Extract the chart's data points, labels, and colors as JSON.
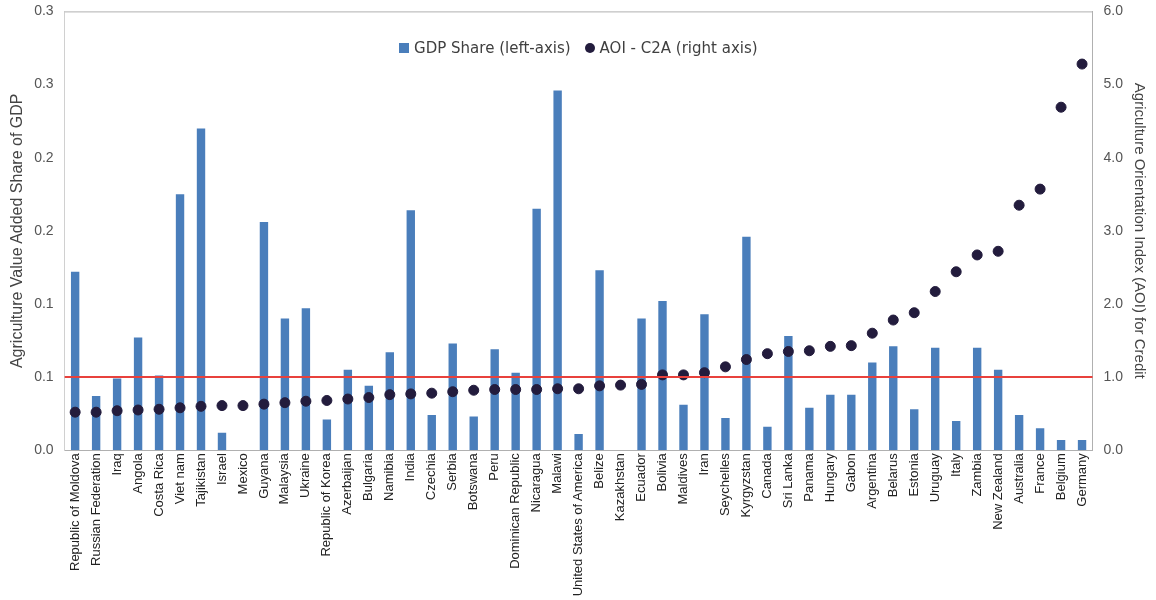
{
  "chart_data": {
    "type": "bar",
    "ylabel": "Agriculture Value Added Share of GDP",
    "y2label": "Agriculture Orientation Index (AOI) for Credit",
    "categories": [
      "Republic of Moldova",
      "Russian Federation",
      "Iraq",
      "Angola",
      "Costa Rica",
      "Viet nam",
      "Tajikistan",
      "Israel",
      "Mexico",
      "Guyana",
      "Malaysia",
      "Ukraine",
      "Republic of Korea",
      "Azerbaijan",
      "Bulgaria",
      "Namibia",
      "India",
      "Czechia",
      "Serbia",
      "Botswana",
      "Peru",
      "Dominican Republic",
      "Nicaragua",
      "Malawi",
      "United States of America",
      "Belize",
      "Kazakhstan",
      "Ecuador",
      "Bolivia",
      "Maldives",
      "Iran",
      "Seychelles",
      "Kyrgyzstan",
      "Canada",
      "Sri Lanka",
      "Panama",
      "Hungary",
      "Gabon",
      "Argentina",
      "Belarus",
      "Estonia",
      "Uruguay",
      "Italy",
      "Zambia",
      "New Zealand",
      "Australia",
      "France",
      "Belgium",
      "Germany"
    ],
    "series": [
      {
        "name": "GDP Share (left-axis)",
        "color": "#4a7ebb",
        "values": [
          0.122,
          0.037,
          0.049,
          0.077,
          0.051,
          0.175,
          0.22,
          0.012,
          null,
          0.156,
          0.09,
          0.097,
          0.021,
          0.055,
          0.044,
          0.067,
          0.164,
          0.024,
          0.073,
          0.023,
          0.069,
          0.053,
          0.165,
          0.246,
          0.011,
          0.123,
          null,
          0.09,
          0.102,
          0.031,
          0.093,
          0.022,
          0.146,
          0.016,
          0.078,
          0.029,
          0.038,
          0.038,
          0.06,
          0.071,
          0.028,
          0.07,
          0.02,
          0.07,
          0.055,
          0.024,
          0.015,
          0.007,
          0.007
        ]
      },
      {
        "name": "AOI - C2A (right axis)",
        "type": "scatter",
        "axis": "y2",
        "color": "#231c3d",
        "values": [
          0.52,
          0.52,
          0.54,
          0.55,
          0.56,
          0.58,
          0.6,
          0.61,
          0.61,
          0.63,
          0.65,
          0.67,
          0.68,
          0.7,
          0.72,
          0.76,
          0.77,
          0.78,
          0.8,
          0.82,
          0.83,
          0.83,
          0.83,
          0.84,
          0.84,
          0.88,
          0.89,
          0.9,
          1.03,
          1.03,
          1.06,
          1.14,
          1.24,
          1.32,
          1.35,
          1.36,
          1.42,
          1.43,
          1.6,
          1.78,
          1.88,
          2.17,
          2.44,
          2.67,
          2.72,
          3.35,
          3.57,
          4.69,
          5.28
        ]
      }
    ],
    "ylim": [
      0,
      0.3
    ],
    "yticks": [
      {
        "value": 0,
        "label": "0.0"
      },
      {
        "value": 0.05,
        "label": "0.1"
      },
      {
        "value": 0.1,
        "label": "0.1"
      },
      {
        "value": 0.15,
        "label": "0.2"
      },
      {
        "value": 0.2,
        "label": "0.2"
      },
      {
        "value": 0.25,
        "label": "0.3"
      },
      {
        "value": 0.3,
        "label": "0.3"
      }
    ],
    "y2lim": [
      0,
      6
    ],
    "y2ticks": [
      {
        "value": 0,
        "label": "0.0"
      },
      {
        "value": 1,
        "label": "1.0"
      },
      {
        "value": 2,
        "label": "2.0"
      },
      {
        "value": 3,
        "label": "3.0"
      },
      {
        "value": 4,
        "label": "4.0"
      },
      {
        "value": 5,
        "label": "5.0"
      },
      {
        "value": 6,
        "label": "6.0"
      }
    ],
    "ref_lines": [
      {
        "axis": "y2",
        "value": 1,
        "color": "#e8413c"
      }
    ],
    "legend": "top",
    "marker": "circle",
    "grid": false
  }
}
